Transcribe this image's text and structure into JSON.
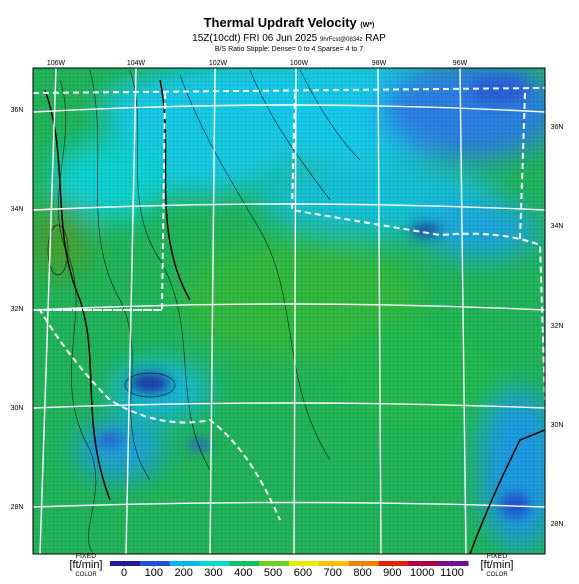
{
  "header": {
    "title": "Thermal Updraft Velocity",
    "title_symbol": "(W*)",
    "valid_time": "15Z(10cdt) FRI 06 Jun 2025",
    "forecast": "9hrFcst@0834z",
    "model": "RAP",
    "stipple_note": "B/S Ratio Stipple: Dense= 0 to 4 Sparse= 4 to 7"
  },
  "map": {
    "longitude_labels": [
      "106W",
      "104W",
      "102W",
      "100W",
      "98W",
      "96W"
    ],
    "latitude_labels_left": [
      "36N",
      "34N",
      "32N",
      "30N",
      "28N"
    ],
    "latitude_labels_right": [
      "36N",
      "34N",
      "32N",
      "30N",
      "28N"
    ]
  },
  "colorbar": {
    "ticks": [
      0,
      100,
      200,
      300,
      400,
      500,
      600,
      700,
      800,
      900,
      1000,
      1100
    ],
    "colors": [
      "#1c1c9c",
      "#1e4fd8",
      "#0ab4f0",
      "#00d8d0",
      "#10c060",
      "#6ad020",
      "#e8e800",
      "#f8c000",
      "#f08000",
      "#e02000",
      "#b00040",
      "#701090"
    ],
    "left": {
      "top": "FIXED",
      "unit": "[ft/min]",
      "bottom": "COLOR"
    },
    "right": {
      "top": "FIXED",
      "unit": "[ft/min]",
      "bottom": "COLOR"
    }
  }
}
